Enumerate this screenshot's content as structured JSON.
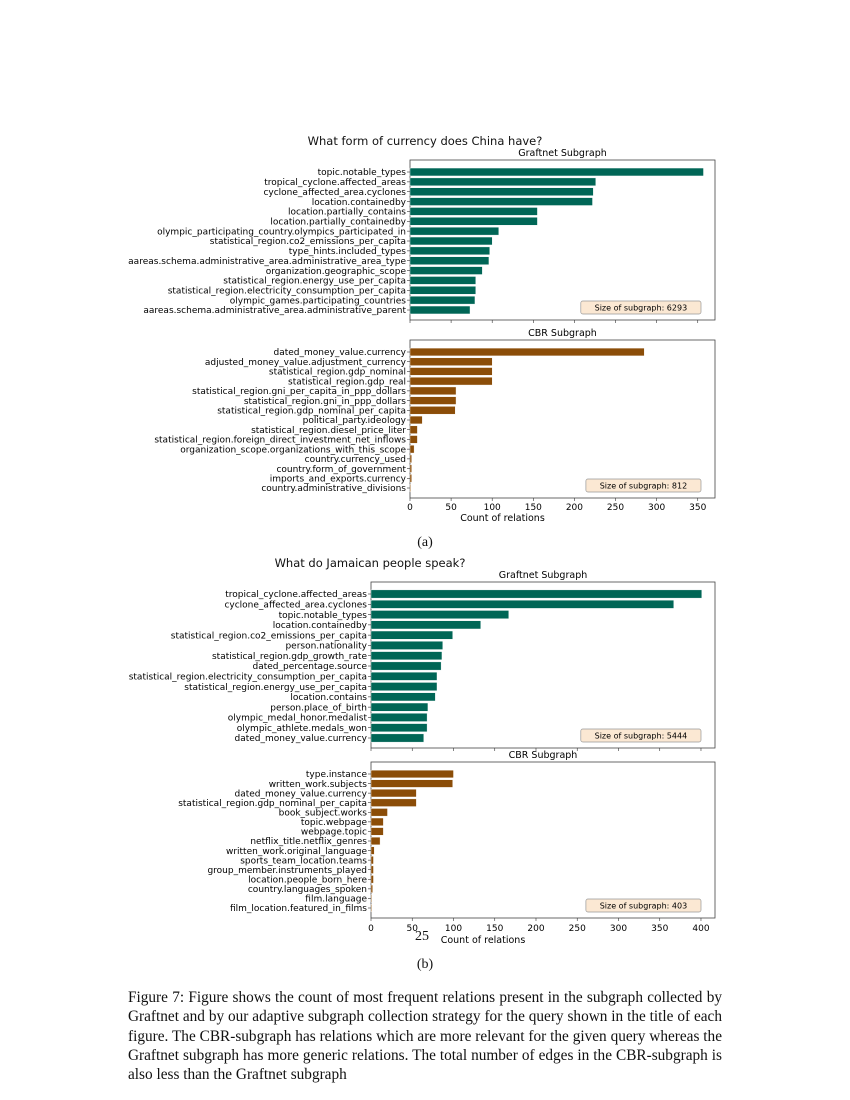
{
  "chart_data": [
    {
      "type": "bar",
      "orientation": "horizontal",
      "label": "(a)",
      "title": "What form of currency does China have?",
      "xlabel": "Count of relations",
      "xlim": [
        0,
        371
      ],
      "xticks": [
        0,
        50,
        100,
        150,
        200,
        250,
        300,
        350
      ],
      "grid": false,
      "panels": [
        {
          "subtitle": "Graftnet Subgraph",
          "color": "#006656",
          "annotation": "Size of subgraph: 6293",
          "categories": [
            "topic.notable_types",
            "tropical_cyclone.affected_areas",
            "cyclone_affected_area.cyclones",
            "location.containedby",
            "location.partially_contains",
            "location.partially_containedby",
            "olympic_participating_country.olympics_participated_in",
            "statistical_region.co2_emissions_per_capita",
            "type_hints.included_types",
            "aareas.schema.administrative_area.administrative_area_type",
            "organization.geographic_scope",
            "statistical_region.energy_use_per_capita",
            "statistical_region.electricity_consumption_per_capita",
            "olympic_games.participating_countries",
            "aareas.schema.administrative_area.administrative_parent"
          ],
          "values": [
            357,
            226,
            223,
            222,
            155,
            155,
            108,
            100,
            97,
            96,
            88,
            80,
            80,
            79,
            73
          ]
        },
        {
          "subtitle": "CBR Subgraph",
          "color": "#8b4d08",
          "annotation": "Size of subgraph: 812",
          "categories": [
            "dated_money_value.currency",
            "adjusted_money_value.adjustment_currency",
            "statistical_region.gdp_nominal",
            "statistical_region.gdp_real",
            "statistical_region.gni_per_capita_in_ppp_dollars",
            "statistical_region.gni_in_ppp_dollars",
            "statistical_region.gdp_nominal_per_capita",
            "political_party.ideology",
            "statistical_region.diesel_price_liter",
            "statistical_region.foreign_direct_investment_net_inflows",
            "organization_scope.organizations_with_this_scope",
            "country.currency_used",
            "country.form_of_government",
            "imports_and_exports.currency",
            "country.administrative_divisions"
          ],
          "values": [
            285,
            100,
            100,
            100,
            56,
            56,
            55,
            15,
            9,
            9,
            5,
            2,
            2,
            2,
            1
          ]
        }
      ]
    },
    {
      "type": "bar",
      "orientation": "horizontal",
      "label": "(b)",
      "title": "What do Jamaican people speak?",
      "xlabel": "Count of relations",
      "xlim": [
        0,
        417
      ],
      "xticks": [
        0,
        50,
        100,
        150,
        200,
        250,
        300,
        350,
        400
      ],
      "grid": false,
      "panels": [
        {
          "subtitle": "Graftnet Subgraph",
          "color": "#006656",
          "annotation": "Size of subgraph: 5444",
          "categories": [
            "tropical_cyclone.affected_areas",
            "cyclone_affected_area.cyclones",
            "topic.notable_types",
            "location.containedby",
            "statistical_region.co2_emissions_per_capita",
            "person.nationality",
            "statistical_region.gdp_growth_rate",
            "dated_percentage.source",
            "statistical_region.electricity_consumption_per_capita",
            "statistical_region.energy_use_per_capita",
            "location.contains",
            "person.place_of_birth",
            "olympic_medal_honor.medalist",
            "olympic_athlete.medals_won",
            "dated_money_value.currency"
          ],
          "values": [
            401,
            367,
            167,
            133,
            99,
            87,
            86,
            85,
            80,
            80,
            78,
            69,
            68,
            68,
            64
          ]
        },
        {
          "subtitle": "CBR Subgraph",
          "color": "#8b4d08",
          "annotation": "Size of subgraph: 403",
          "categories": [
            "type.instance",
            "written_work.subjects",
            "dated_money_value.currency",
            "statistical_region.gdp_nominal_per_capita",
            "book_subject.works",
            "topic.webpage",
            "webpage.topic",
            "netflix_title.netflix_genres",
            "written_work.original_language",
            "sports_team_location.teams",
            "group_member.instruments_played",
            "location.people_born_here",
            "country.languages_spoken",
            "film.language",
            "film_location.featured_in_films"
          ],
          "values": [
            100,
            99,
            55,
            55,
            20,
            15,
            15,
            11,
            4,
            3,
            3,
            3,
            2,
            1,
            1
          ]
        }
      ]
    }
  ],
  "page_number": "25",
  "caption": "Figure 7: Figure shows the count of most frequent relations present in the subgraph collected by Graftnet and by our adaptive subgraph collection strategy for the query shown in the title of each figure. The CBR-subgraph has relations which are more relevant for the given query whereas the Graftnet subgraph has more generic relations. The total number of edges in the CBR-subgraph is also less than the Graftnet subgraph"
}
